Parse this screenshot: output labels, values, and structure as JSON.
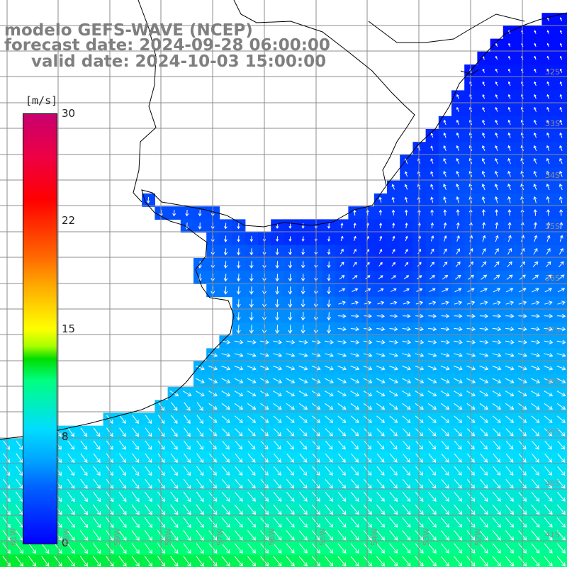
{
  "title": {
    "model": "modelo GEFS-WAVE (NCEP)",
    "forecast": "forecast date: 2024-09-28 06:00:00",
    "valid": "valid date: 2024-10-03 15:00:00"
  },
  "colorbar": {
    "units": "[m/s]",
    "ticks": [
      "30",
      "22",
      "15",
      "8",
      "0"
    ],
    "tick_values": [
      30,
      22,
      15,
      8,
      0
    ],
    "min": 0,
    "max": 30
  },
  "latitude_labels": [
    "32S",
    "33S",
    "34S",
    "35S",
    "36S",
    "37S",
    "38S",
    "39S",
    "40S",
    "41S"
  ],
  "longitude_labels": [
    "61W",
    "60W",
    "59W",
    "58W",
    "57W",
    "56W",
    "55W",
    "54W",
    "53W",
    "52W"
  ],
  "colors": {
    "land": "#ffffff",
    "grid": "#8c8c8c",
    "coast": "#000000",
    "arrows": "#ffffff",
    "title": "#7f7f7f"
  },
  "field": {
    "description_of_colors": "wind speed 0-30 m/s",
    "dominant_range_ms": [
      1,
      11
    ]
  }
}
